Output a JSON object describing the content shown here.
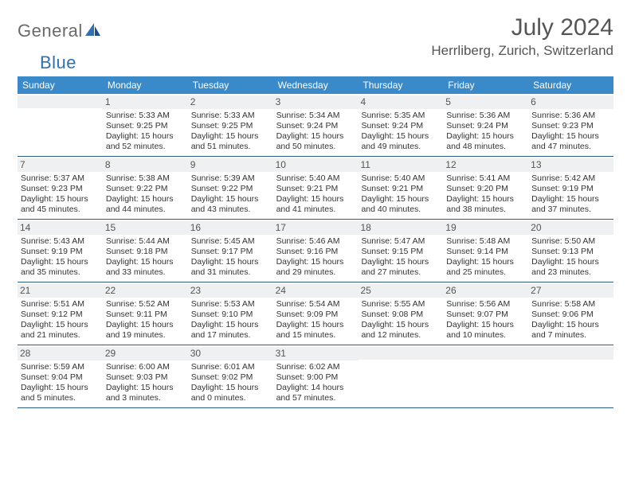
{
  "logo": {
    "text1": "General",
    "text2": "Blue"
  },
  "title": "July 2024",
  "location": "Herrliberg, Zurich, Switzerland",
  "colors": {
    "header_bg": "#3a8ac9",
    "header_text": "#ffffff",
    "daynum_bg": "#eef0f1",
    "week_border": "#2a5d8a",
    "logo_gray": "#6a6a6a",
    "logo_blue": "#2f6fb3"
  },
  "weekdays": [
    "Sunday",
    "Monday",
    "Tuesday",
    "Wednesday",
    "Thursday",
    "Friday",
    "Saturday"
  ],
  "weeks": [
    [
      {
        "num": "",
        "sunrise": "",
        "sunset": "",
        "daylight": ""
      },
      {
        "num": "1",
        "sunrise": "Sunrise: 5:33 AM",
        "sunset": "Sunset: 9:25 PM",
        "daylight": "Daylight: 15 hours and 52 minutes."
      },
      {
        "num": "2",
        "sunrise": "Sunrise: 5:33 AM",
        "sunset": "Sunset: 9:25 PM",
        "daylight": "Daylight: 15 hours and 51 minutes."
      },
      {
        "num": "3",
        "sunrise": "Sunrise: 5:34 AM",
        "sunset": "Sunset: 9:24 PM",
        "daylight": "Daylight: 15 hours and 50 minutes."
      },
      {
        "num": "4",
        "sunrise": "Sunrise: 5:35 AM",
        "sunset": "Sunset: 9:24 PM",
        "daylight": "Daylight: 15 hours and 49 minutes."
      },
      {
        "num": "5",
        "sunrise": "Sunrise: 5:36 AM",
        "sunset": "Sunset: 9:24 PM",
        "daylight": "Daylight: 15 hours and 48 minutes."
      },
      {
        "num": "6",
        "sunrise": "Sunrise: 5:36 AM",
        "sunset": "Sunset: 9:23 PM",
        "daylight": "Daylight: 15 hours and 47 minutes."
      }
    ],
    [
      {
        "num": "7",
        "sunrise": "Sunrise: 5:37 AM",
        "sunset": "Sunset: 9:23 PM",
        "daylight": "Daylight: 15 hours and 45 minutes."
      },
      {
        "num": "8",
        "sunrise": "Sunrise: 5:38 AM",
        "sunset": "Sunset: 9:22 PM",
        "daylight": "Daylight: 15 hours and 44 minutes."
      },
      {
        "num": "9",
        "sunrise": "Sunrise: 5:39 AM",
        "sunset": "Sunset: 9:22 PM",
        "daylight": "Daylight: 15 hours and 43 minutes."
      },
      {
        "num": "10",
        "sunrise": "Sunrise: 5:40 AM",
        "sunset": "Sunset: 9:21 PM",
        "daylight": "Daylight: 15 hours and 41 minutes."
      },
      {
        "num": "11",
        "sunrise": "Sunrise: 5:40 AM",
        "sunset": "Sunset: 9:21 PM",
        "daylight": "Daylight: 15 hours and 40 minutes."
      },
      {
        "num": "12",
        "sunrise": "Sunrise: 5:41 AM",
        "sunset": "Sunset: 9:20 PM",
        "daylight": "Daylight: 15 hours and 38 minutes."
      },
      {
        "num": "13",
        "sunrise": "Sunrise: 5:42 AM",
        "sunset": "Sunset: 9:19 PM",
        "daylight": "Daylight: 15 hours and 37 minutes."
      }
    ],
    [
      {
        "num": "14",
        "sunrise": "Sunrise: 5:43 AM",
        "sunset": "Sunset: 9:19 PM",
        "daylight": "Daylight: 15 hours and 35 minutes."
      },
      {
        "num": "15",
        "sunrise": "Sunrise: 5:44 AM",
        "sunset": "Sunset: 9:18 PM",
        "daylight": "Daylight: 15 hours and 33 minutes."
      },
      {
        "num": "16",
        "sunrise": "Sunrise: 5:45 AM",
        "sunset": "Sunset: 9:17 PM",
        "daylight": "Daylight: 15 hours and 31 minutes."
      },
      {
        "num": "17",
        "sunrise": "Sunrise: 5:46 AM",
        "sunset": "Sunset: 9:16 PM",
        "daylight": "Daylight: 15 hours and 29 minutes."
      },
      {
        "num": "18",
        "sunrise": "Sunrise: 5:47 AM",
        "sunset": "Sunset: 9:15 PM",
        "daylight": "Daylight: 15 hours and 27 minutes."
      },
      {
        "num": "19",
        "sunrise": "Sunrise: 5:48 AM",
        "sunset": "Sunset: 9:14 PM",
        "daylight": "Daylight: 15 hours and 25 minutes."
      },
      {
        "num": "20",
        "sunrise": "Sunrise: 5:50 AM",
        "sunset": "Sunset: 9:13 PM",
        "daylight": "Daylight: 15 hours and 23 minutes."
      }
    ],
    [
      {
        "num": "21",
        "sunrise": "Sunrise: 5:51 AM",
        "sunset": "Sunset: 9:12 PM",
        "daylight": "Daylight: 15 hours and 21 minutes."
      },
      {
        "num": "22",
        "sunrise": "Sunrise: 5:52 AM",
        "sunset": "Sunset: 9:11 PM",
        "daylight": "Daylight: 15 hours and 19 minutes."
      },
      {
        "num": "23",
        "sunrise": "Sunrise: 5:53 AM",
        "sunset": "Sunset: 9:10 PM",
        "daylight": "Daylight: 15 hours and 17 minutes."
      },
      {
        "num": "24",
        "sunrise": "Sunrise: 5:54 AM",
        "sunset": "Sunset: 9:09 PM",
        "daylight": "Daylight: 15 hours and 15 minutes."
      },
      {
        "num": "25",
        "sunrise": "Sunrise: 5:55 AM",
        "sunset": "Sunset: 9:08 PM",
        "daylight": "Daylight: 15 hours and 12 minutes."
      },
      {
        "num": "26",
        "sunrise": "Sunrise: 5:56 AM",
        "sunset": "Sunset: 9:07 PM",
        "daylight": "Daylight: 15 hours and 10 minutes."
      },
      {
        "num": "27",
        "sunrise": "Sunrise: 5:58 AM",
        "sunset": "Sunset: 9:06 PM",
        "daylight": "Daylight: 15 hours and 7 minutes."
      }
    ],
    [
      {
        "num": "28",
        "sunrise": "Sunrise: 5:59 AM",
        "sunset": "Sunset: 9:04 PM",
        "daylight": "Daylight: 15 hours and 5 minutes."
      },
      {
        "num": "29",
        "sunrise": "Sunrise: 6:00 AM",
        "sunset": "Sunset: 9:03 PM",
        "daylight": "Daylight: 15 hours and 3 minutes."
      },
      {
        "num": "30",
        "sunrise": "Sunrise: 6:01 AM",
        "sunset": "Sunset: 9:02 PM",
        "daylight": "Daylight: 15 hours and 0 minutes."
      },
      {
        "num": "31",
        "sunrise": "Sunrise: 6:02 AM",
        "sunset": "Sunset: 9:00 PM",
        "daylight": "Daylight: 14 hours and 57 minutes."
      },
      {
        "num": "",
        "sunrise": "",
        "sunset": "",
        "daylight": ""
      },
      {
        "num": "",
        "sunrise": "",
        "sunset": "",
        "daylight": ""
      },
      {
        "num": "",
        "sunrise": "",
        "sunset": "",
        "daylight": ""
      }
    ]
  ]
}
